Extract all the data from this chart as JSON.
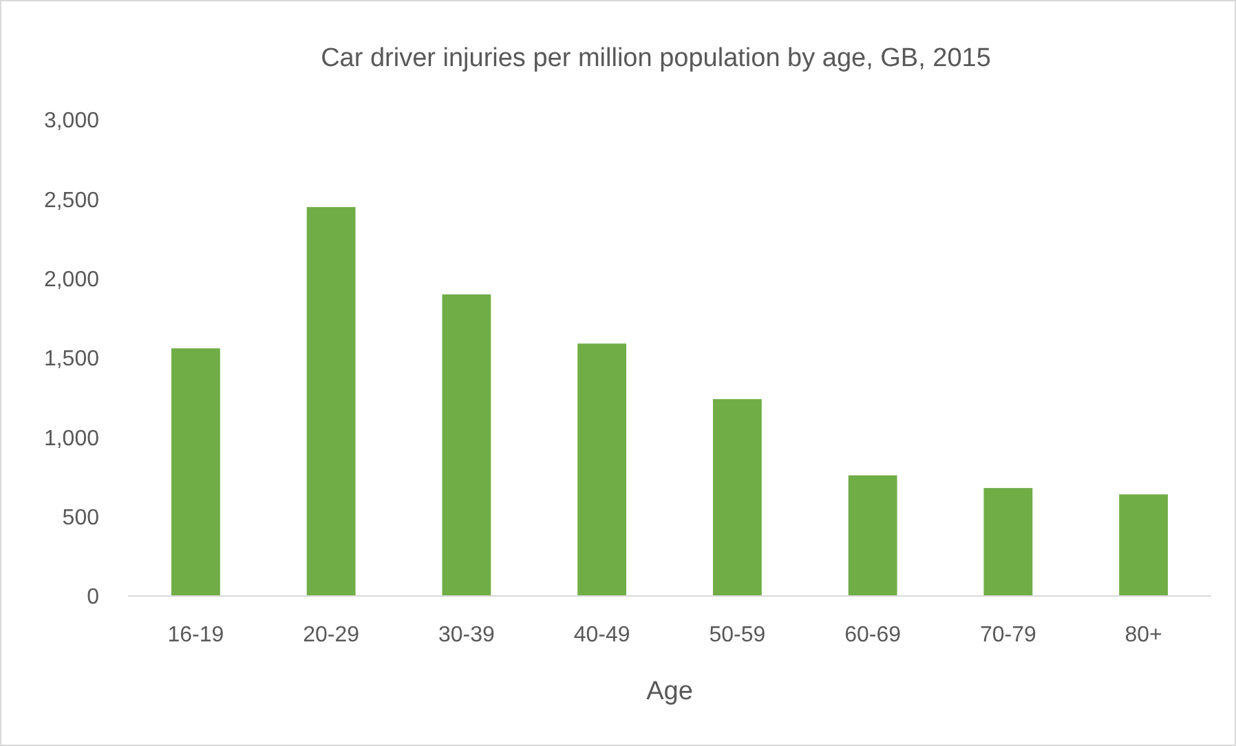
{
  "chart_data": {
    "type": "bar",
    "title": "Car driver injuries per million population by age, GB, 2015",
    "xlabel": "Age",
    "categories": [
      "16-19",
      "20-29",
      "30-39",
      "40-49",
      "50-59",
      "60-69",
      "70-79",
      "80+"
    ],
    "values": [
      1560,
      2450,
      1900,
      1590,
      1240,
      760,
      680,
      640
    ],
    "color": "#70ad47",
    "ylim": [
      0,
      3000
    ],
    "yticks": [
      {
        "value": 0,
        "label": "0"
      },
      {
        "value": 500,
        "label": "500"
      },
      {
        "value": 1000,
        "label": "1,000"
      },
      {
        "value": 1500,
        "label": "1,500"
      },
      {
        "value": 2000,
        "label": "2,000"
      },
      {
        "value": 2500,
        "label": "2,500"
      },
      {
        "value": 3000,
        "label": "3,000"
      }
    ],
    "grid": false
  }
}
